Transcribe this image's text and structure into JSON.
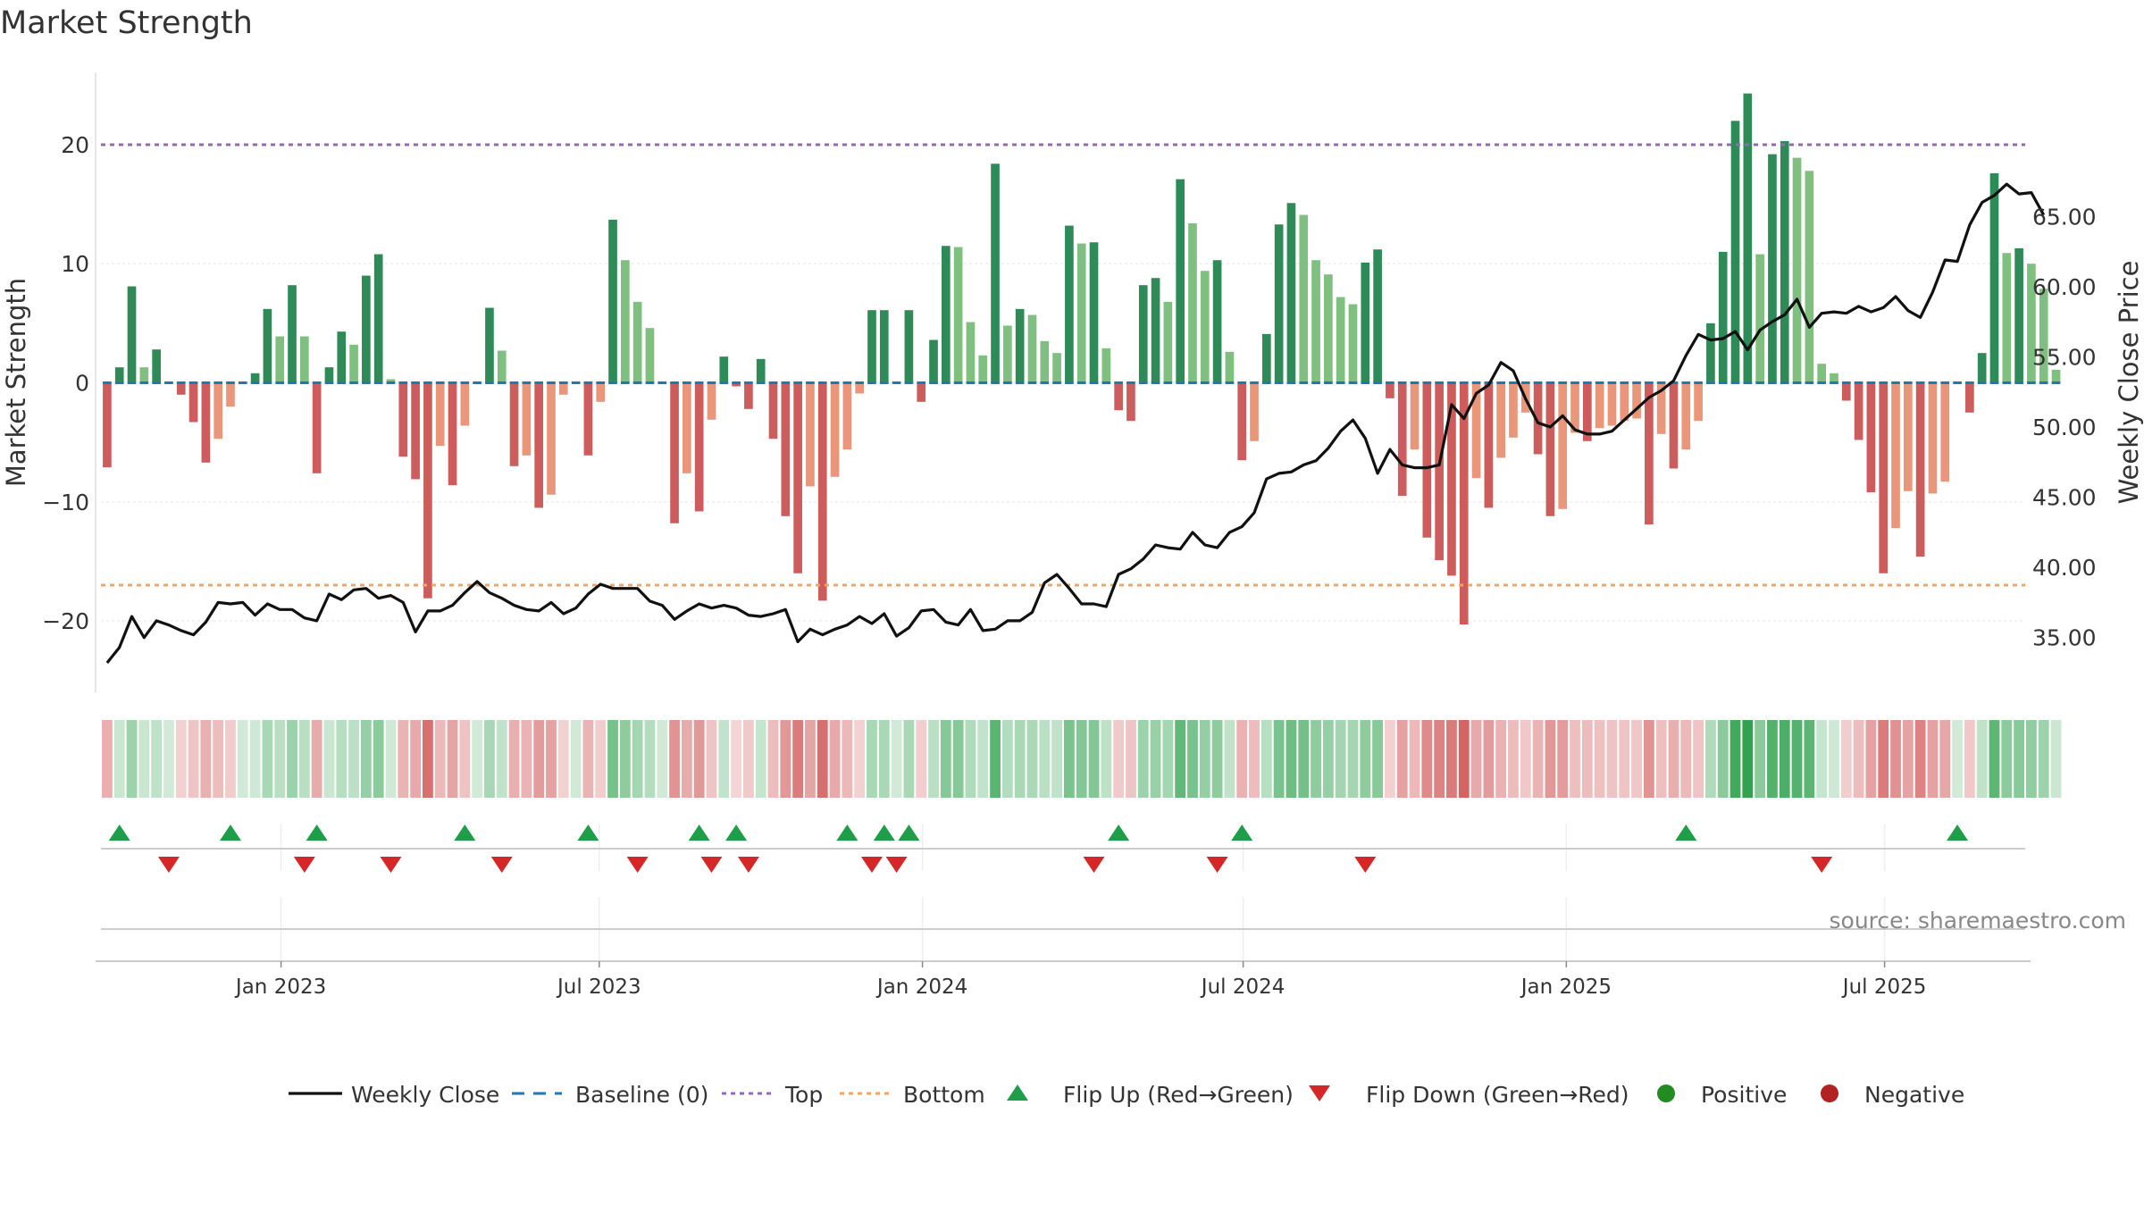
{
  "chart_data": {
    "type": "bar",
    "title": "Market Strength",
    "ylabel_left": "Market Strength",
    "ylabel_right": "Weekly Close Price",
    "source": "source: sharemaestro.com",
    "y_left_lim": [
      -26,
      26
    ],
    "y_left_ticks": [
      20,
      10,
      0,
      -10,
      -20
    ],
    "y_left_tick_labels": [
      "20",
      "10",
      "0",
      "−10",
      "−20"
    ],
    "y_right_lim": [
      31.1,
      75.2
    ],
    "y_right_ticks": [
      65,
      60,
      55,
      50,
      45,
      40,
      35
    ],
    "y_right_tick_labels": [
      "65.00",
      "60.00",
      "55.00",
      "50.00",
      "45.00",
      "40.00",
      "35.00"
    ],
    "x_range_weeks": [
      0,
      156
    ],
    "x_ticks": [
      {
        "label": "Jan 2023",
        "week": 14.6
      },
      {
        "label": "Jul 2023",
        "week": 40.4
      },
      {
        "label": "Jan 2024",
        "week": 66.6
      },
      {
        "label": "Jul 2024",
        "week": 92.6
      },
      {
        "label": "Jan 2025",
        "week": 118.8
      },
      {
        "label": "Jul 2025",
        "week": 144.6
      }
    ],
    "top_line": 20,
    "bottom_line": -17,
    "strength": [
      -7.1,
      1.3,
      8.1,
      1.3,
      2.8,
      0,
      -1,
      -3.3,
      -6.7,
      -4.7,
      -2,
      0,
      0.8,
      6.2,
      3.9,
      8.2,
      3.9,
      -7.6,
      1.3,
      4.3,
      3.2,
      9,
      10.8,
      0.3,
      -6.2,
      -8.1,
      -18.1,
      -5.3,
      -8.6,
      -3.6,
      0,
      6.3,
      2.7,
      -7,
      -6.1,
      -10.5,
      -9.4,
      -1,
      0,
      -6.1,
      -1.6,
      13.7,
      10.3,
      6.8,
      4.6,
      0,
      -11.8,
      -7.6,
      -10.8,
      -3.1,
      2.2,
      -0.3,
      -2.2,
      2,
      -4.7,
      -11.2,
      -16,
      -8.7,
      -18.3,
      -7.9,
      -5.6,
      -0.9,
      6.1,
      6.1,
      0,
      6.1,
      -1.6,
      3.6,
      11.5,
      11.4,
      5.1,
      2.3,
      18.4,
      4.8,
      6.2,
      5.7,
      3.5,
      2.5,
      13.2,
      11.7,
      11.8,
      2.9,
      -2.3,
      -3.2,
      8.2,
      8.8,
      6.8,
      17.1,
      13.4,
      9.4,
      10.3,
      2.6,
      -6.5,
      -4.9,
      4.1,
      13.3,
      15.1,
      14.1,
      10.3,
      9.1,
      7.2,
      6.6,
      10.1,
      11.2,
      -1.3,
      -9.5,
      -5.6,
      -13,
      -14.9,
      -16.2,
      -20.3,
      -8,
      -10.5,
      -6.3,
      -4.6,
      -2.5,
      -6,
      -11.2,
      -10.6,
      -4.2,
      -4.9,
      -3.8,
      -3.6,
      -3.2,
      -3,
      -11.9,
      -4.3,
      -7.2,
      -5.6,
      -3.2,
      5,
      11,
      22,
      24.3,
      10.8,
      19.2,
      20.3,
      18.9,
      17.8,
      1.6,
      0.8,
      -1.5,
      -4.8,
      -9.2,
      -16,
      -12.2,
      -9.1,
      -14.6,
      -9.3,
      -8.3,
      0,
      -2.5,
      2.5,
      17.6,
      10.9,
      11.3,
      10,
      7.9,
      1.1
    ],
    "weekly_close": [
      33.2,
      34.3,
      36.5,
      35,
      36.2,
      35.9,
      35.5,
      35.2,
      36.1,
      37.5,
      37.4,
      37.5,
      36.6,
      37.4,
      37,
      37,
      36.4,
      36.2,
      38.1,
      37.7,
      38.4,
      38.5,
      37.8,
      38,
      37.5,
      35.4,
      36.9,
      36.9,
      37.3,
      38.2,
      39,
      38.2,
      37.8,
      37.3,
      37,
      36.9,
      37.5,
      36.7,
      37.1,
      38.1,
      38.8,
      38.5,
      38.5,
      38.5,
      37.6,
      37.3,
      36.3,
      36.9,
      37.4,
      37.1,
      37.3,
      37.1,
      36.6,
      36.5,
      36.7,
      37,
      34.7,
      35.6,
      35.2,
      35.6,
      35.9,
      36.5,
      36,
      36.7,
      35.1,
      35.7,
      36.9,
      37,
      36.1,
      35.9,
      37,
      35.5,
      35.6,
      36.2,
      36.2,
      36.8,
      38.9,
      39.5,
      38.5,
      37.4,
      37.4,
      37.2,
      39.5,
      39.9,
      40.6,
      41.6,
      41.4,
      41.3,
      42.5,
      41.6,
      41.4,
      42.5,
      42.9,
      43.9,
      46.3,
      46.7,
      46.8,
      47.3,
      47.6,
      48.5,
      49.7,
      50.5,
      49.2,
      46.7,
      48.4,
      47.3,
      47.1,
      47.1,
      47.3,
      51.6,
      50.6,
      52.4,
      53,
      54.6,
      54,
      52,
      50.3,
      50,
      50.8,
      49.8,
      49.5,
      49.5,
      49.7,
      50.5,
      51.3,
      52.1,
      52.6,
      53.3,
      55.1,
      56.6,
      56.2,
      56.3,
      56.8,
      55.5,
      56.9,
      57.5,
      58,
      59.1,
      57.1,
      58.1,
      58.2,
      58.1,
      58.6,
      58.2,
      58.5,
      59.3,
      58.3,
      57.8,
      59.6,
      61.9,
      61.8,
      64.4,
      66,
      66.5,
      67.3,
      66.6,
      66.7,
      65.1
    ],
    "flip_up_weeks": [
      1,
      10,
      17,
      29,
      39,
      48,
      51,
      60,
      63,
      65,
      82,
      92,
      128,
      150
    ],
    "flip_down_weeks": [
      5,
      16,
      23,
      32,
      43,
      49,
      52,
      62,
      64,
      80,
      90,
      102,
      139
    ],
    "legend": {
      "weekly_close": "Weekly Close",
      "baseline": "Baseline (0)",
      "top": "Top",
      "bottom": "Bottom",
      "flip_up": "Flip Up (Red→Green)",
      "flip_down": "Flip Down (Green→Red)",
      "positive": "Positive",
      "negative": "Negative"
    },
    "colors": {
      "pos_dark": "#2e8b57",
      "pos_light": "#7fbf7f",
      "neg_dark": "#cd5c5c",
      "neg_light": "#e9967a",
      "close": "#111111",
      "baseline": "#1f77b4",
      "top": "#9467bd",
      "bottom": "#ff7f0e",
      "flip_up": "#1e9e48",
      "flip_down": "#d62728",
      "positive": "#228b22",
      "negative": "#b22222"
    }
  }
}
